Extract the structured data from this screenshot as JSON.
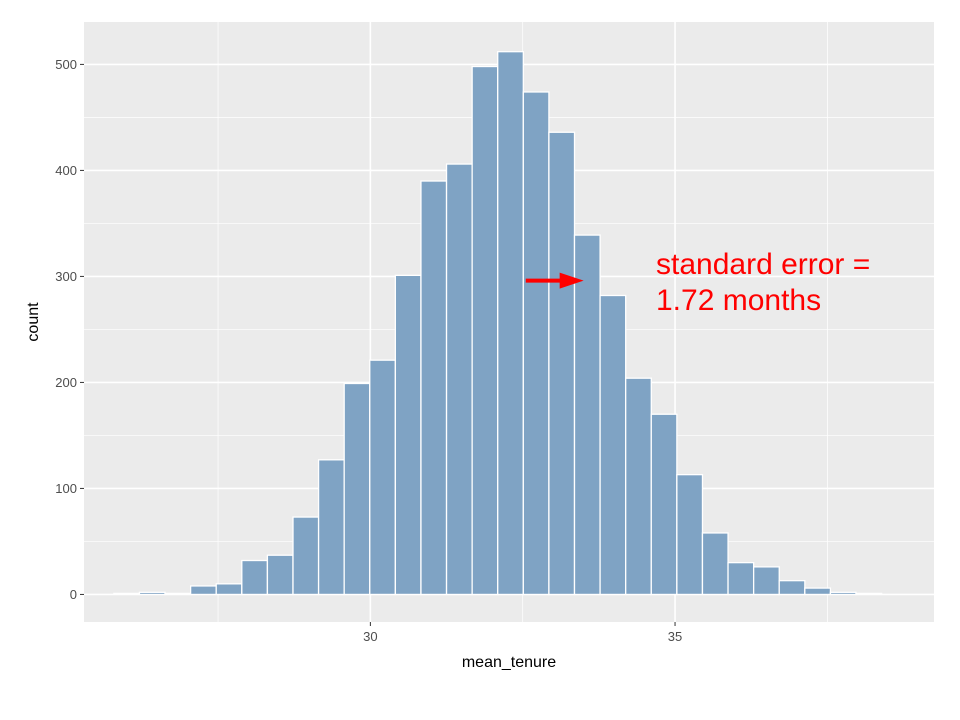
{
  "chart_data": {
    "type": "bar",
    "title": "",
    "xlabel": "mean_tenure",
    "ylabel": "count",
    "xlim": [
      25.3,
      39.25
    ],
    "ylim": [
      -26,
      540
    ],
    "x_ticks": [
      30,
      35
    ],
    "x_minor_ticks": [
      27.5,
      32.5,
      37.5
    ],
    "y_ticks": [
      0,
      100,
      200,
      300,
      400,
      500
    ],
    "y_minor_ticks": [
      50,
      150,
      250,
      350,
      450
    ],
    "grid": true,
    "bin_width": 0.42,
    "bins": [
      {
        "x": 26.0,
        "count": 1
      },
      {
        "x": 26.42,
        "count": 2
      },
      {
        "x": 26.84,
        "count": 1
      },
      {
        "x": 27.26,
        "count": 8
      },
      {
        "x": 27.68,
        "count": 10
      },
      {
        "x": 28.1,
        "count": 32
      },
      {
        "x": 28.52,
        "count": 37
      },
      {
        "x": 28.94,
        "count": 73
      },
      {
        "x": 29.36,
        "count": 127
      },
      {
        "x": 29.78,
        "count": 199
      },
      {
        "x": 30.2,
        "count": 221
      },
      {
        "x": 30.62,
        "count": 301
      },
      {
        "x": 31.04,
        "count": 390
      },
      {
        "x": 31.46,
        "count": 406
      },
      {
        "x": 31.88,
        "count": 498
      },
      {
        "x": 32.3,
        "count": 512
      },
      {
        "x": 32.72,
        "count": 474
      },
      {
        "x": 33.14,
        "count": 436
      },
      {
        "x": 33.56,
        "count": 339
      },
      {
        "x": 33.98,
        "count": 282
      },
      {
        "x": 34.4,
        "count": 204
      },
      {
        "x": 34.82,
        "count": 170
      },
      {
        "x": 35.24,
        "count": 113
      },
      {
        "x": 35.66,
        "count": 58
      },
      {
        "x": 36.08,
        "count": 30
      },
      {
        "x": 36.5,
        "count": 26
      },
      {
        "x": 36.92,
        "count": 13
      },
      {
        "x": 37.34,
        "count": 6
      },
      {
        "x": 37.76,
        "count": 2
      },
      {
        "x": 38.18,
        "count": 1
      }
    ],
    "annotation": {
      "lines": [
        "standard error =",
        "1.72 months"
      ],
      "arrow": {
        "x_from": 32.55,
        "x_to": 33.5,
        "y": 296
      }
    },
    "colors": {
      "bar_fill": "#7fa3c4",
      "bar_stroke": "#ffffff",
      "panel": "#ebebeb",
      "grid": "#ffffff",
      "annotation": "#ff0000"
    }
  }
}
